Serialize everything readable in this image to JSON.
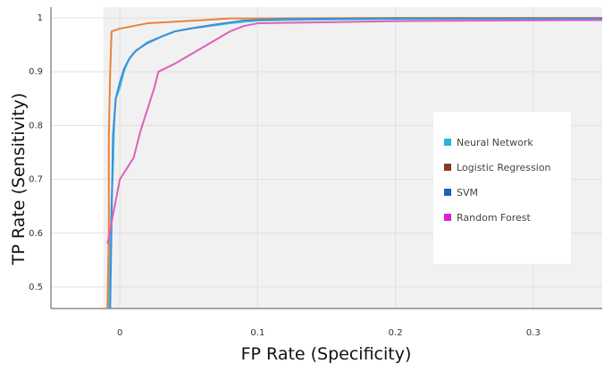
{
  "chart_data": {
    "type": "line",
    "title": "",
    "xlabel": "FP Rate (Specificity)",
    "ylabel": "TP Rate (Sensitivity)",
    "xlim": [
      -0.05,
      0.35
    ],
    "ylim": [
      0.46,
      1.02
    ],
    "x_ticks": [
      0,
      0.1,
      0.2,
      0.3
    ],
    "x_tick_labels": [
      "0",
      "0.1",
      "0.2",
      "0.3"
    ],
    "y_ticks": [
      0.5,
      0.6,
      0.7,
      0.8,
      0.9,
      1.0
    ],
    "y_tick_labels": [
      "0.5",
      "0.6",
      "0.7",
      "0.8",
      "0.9",
      "1"
    ],
    "grid": true,
    "legend_position": "right",
    "series": [
      {
        "name": "Neural Network",
        "color": "#4DC3D8",
        "points": [
          [
            -0.008,
            0.46
          ],
          [
            -0.007,
            0.58
          ],
          [
            -0.006,
            0.66
          ],
          [
            -0.005,
            0.72
          ],
          [
            -0.004,
            0.81
          ],
          [
            -0.003,
            0.85
          ],
          [
            0,
            0.87
          ],
          [
            0.003,
            0.9
          ],
          [
            0.006,
            0.92
          ],
          [
            0.01,
            0.935
          ],
          [
            0.015,
            0.945
          ],
          [
            0.02,
            0.955
          ],
          [
            0.03,
            0.965
          ],
          [
            0.04,
            0.975
          ],
          [
            0.05,
            0.98
          ],
          [
            0.06,
            0.983
          ],
          [
            0.08,
            0.99
          ],
          [
            0.1,
            0.995
          ],
          [
            0.15,
            0.997
          ],
          [
            0.2,
            0.998
          ],
          [
            0.35,
            0.998
          ]
        ]
      },
      {
        "name": "Logistic Regression",
        "color": "#E8833A",
        "points": [
          [
            -0.009,
            0.46
          ],
          [
            -0.008,
            0.6
          ],
          [
            -0.008,
            0.78
          ],
          [
            -0.007,
            0.9
          ],
          [
            -0.006,
            0.975
          ],
          [
            0,
            0.98
          ],
          [
            0.01,
            0.985
          ],
          [
            0.02,
            0.99
          ],
          [
            0.04,
            0.993
          ],
          [
            0.06,
            0.996
          ],
          [
            0.08,
            0.999
          ],
          [
            0.1,
            0.999
          ],
          [
            0.2,
            1.0
          ],
          [
            0.35,
            1.0
          ]
        ]
      },
      {
        "name": "SVM",
        "color": "#3A8FD8",
        "points": [
          [
            -0.007,
            0.46
          ],
          [
            -0.006,
            0.62
          ],
          [
            -0.005,
            0.78
          ],
          [
            -0.003,
            0.85
          ],
          [
            0,
            0.88
          ],
          [
            0.003,
            0.905
          ],
          [
            0.007,
            0.925
          ],
          [
            0.012,
            0.94
          ],
          [
            0.02,
            0.953
          ],
          [
            0.03,
            0.965
          ],
          [
            0.04,
            0.975
          ],
          [
            0.055,
            0.982
          ],
          [
            0.07,
            0.988
          ],
          [
            0.09,
            0.995
          ],
          [
            0.12,
            0.998
          ],
          [
            0.2,
            0.999
          ],
          [
            0.35,
            0.999
          ]
        ]
      },
      {
        "name": "Random Forest",
        "color": "#E060B8",
        "points": [
          [
            -0.009,
            0.58
          ],
          [
            -0.006,
            0.62
          ],
          [
            -0.003,
            0.66
          ],
          [
            0,
            0.7
          ],
          [
            0.005,
            0.72
          ],
          [
            0.01,
            0.74
          ],
          [
            0.015,
            0.79
          ],
          [
            0.02,
            0.83
          ],
          [
            0.025,
            0.87
          ],
          [
            0.028,
            0.9
          ],
          [
            0.04,
            0.915
          ],
          [
            0.05,
            0.93
          ],
          [
            0.06,
            0.945
          ],
          [
            0.07,
            0.96
          ],
          [
            0.08,
            0.975
          ],
          [
            0.09,
            0.985
          ],
          [
            0.1,
            0.99
          ],
          [
            0.15,
            0.992
          ],
          [
            0.2,
            0.994
          ],
          [
            0.35,
            0.996
          ]
        ]
      }
    ]
  },
  "legend": {
    "items": [
      {
        "label": "Neural Network",
        "color": "#29B6D8"
      },
      {
        "label": "Logistic Regression",
        "color": "#8B3A1E"
      },
      {
        "label": "SVM",
        "color": "#1F5FBF"
      },
      {
        "label": "Random Forest",
        "color": "#E020D0"
      }
    ]
  }
}
